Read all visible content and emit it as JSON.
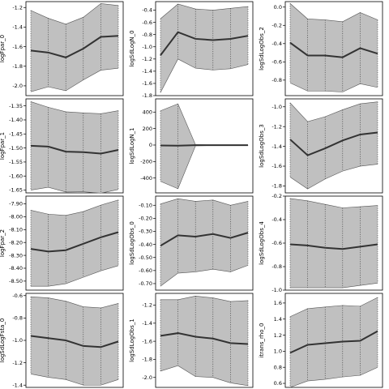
{
  "chart_data": [
    {
      "type": "line",
      "ylabel": "logFpar_0",
      "x": [
        0,
        1,
        2,
        3,
        4,
        5
      ],
      "series": [
        {
          "role": "mean",
          "values": [
            -1.64,
            -1.66,
            -1.71,
            -1.62,
            -1.5,
            -1.49
          ]
        },
        {
          "role": "upper",
          "values": [
            -1.23,
            -1.31,
            -1.37,
            -1.3,
            -1.16,
            -1.18
          ]
        },
        {
          "role": "lower",
          "values": [
            -2.06,
            -2.01,
            -2.05,
            -1.94,
            -1.84,
            -1.82
          ]
        }
      ],
      "yticks": [
        -2.0,
        -1.8,
        -1.6,
        -1.4,
        -1.2
      ],
      "ylim": [
        -2.1,
        -1.14
      ]
    },
    {
      "type": "line",
      "ylabel": "logSdLogN_0",
      "x": [
        0,
        1,
        2,
        3,
        4,
        5
      ],
      "series": [
        {
          "role": "mean",
          "values": [
            -1.14,
            -0.76,
            -0.87,
            -0.89,
            -0.87,
            -0.82
          ]
        },
        {
          "role": "upper",
          "values": [
            -0.54,
            -0.3,
            -0.38,
            -0.4,
            -0.37,
            -0.34
          ]
        },
        {
          "role": "lower",
          "values": [
            -1.75,
            -1.2,
            -1.35,
            -1.38,
            -1.36,
            -1.29
          ]
        }
      ],
      "yticks": [
        -1.8,
        -1.6,
        -1.4,
        -1.2,
        -1.0,
        -0.8,
        -0.6,
        -0.4
      ],
      "ylim": [
        -1.8,
        -0.26
      ]
    },
    {
      "type": "line",
      "ylabel": "logSdLogObs_2",
      "x": [
        0,
        1,
        2,
        3,
        4,
        5
      ],
      "series": [
        {
          "role": "mean",
          "values": [
            -0.39,
            -0.53,
            -0.53,
            -0.55,
            -0.45,
            -0.51
          ]
        },
        {
          "role": "upper",
          "values": [
            0.04,
            -0.13,
            -0.14,
            -0.16,
            -0.06,
            -0.14
          ]
        },
        {
          "role": "lower",
          "values": [
            -0.83,
            -0.92,
            -0.92,
            -0.93,
            -0.84,
            -0.88
          ]
        }
      ],
      "yticks": [
        -0.8,
        -0.6,
        -0.4,
        -0.2,
        0.0
      ],
      "ylim": [
        -0.97,
        0.06
      ]
    },
    {
      "type": "line",
      "ylabel": "logFpar_1",
      "x": [
        0,
        1,
        2,
        3,
        4,
        5
      ],
      "series": [
        {
          "role": "mean",
          "values": [
            -1.492,
            -1.495,
            -1.513,
            -1.515,
            -1.52,
            -1.507
          ]
        },
        {
          "role": "upper",
          "values": [
            -1.335,
            -1.355,
            -1.371,
            -1.375,
            -1.378,
            -1.367
          ]
        },
        {
          "role": "lower",
          "values": [
            -1.65,
            -1.64,
            -1.657,
            -1.656,
            -1.661,
            -1.648
          ]
        }
      ],
      "yticks": [
        -1.65,
        -1.6,
        -1.55,
        -1.5,
        -1.45,
        -1.4,
        -1.35
      ],
      "ylim": [
        -1.66,
        -1.325
      ]
    },
    {
      "type": "line",
      "ylabel": "logSdLogN_1",
      "x": [
        0,
        1,
        2,
        3,
        4,
        5
      ],
      "series": [
        {
          "role": "mean",
          "values": [
            -5,
            -8,
            -2,
            -2,
            -2,
            -2
          ]
        },
        {
          "role": "upper",
          "values": [
            415,
            500,
            5,
            0,
            0,
            0
          ]
        },
        {
          "role": "lower",
          "values": [
            -440,
            -530,
            -10,
            -5,
            -5,
            -4
          ]
        }
      ],
      "yticks": [
        -400,
        -200,
        0,
        200,
        400
      ],
      "ylim": [
        -580,
        560
      ]
    },
    {
      "type": "line",
      "ylabel": "logSdLogObs_3",
      "x": [
        0,
        1,
        2,
        3,
        4,
        5
      ],
      "series": [
        {
          "role": "mean",
          "values": [
            -1.33,
            -1.49,
            -1.42,
            -1.34,
            -1.28,
            -1.26
          ]
        },
        {
          "role": "upper",
          "values": [
            -0.96,
            -1.15,
            -1.1,
            -1.03,
            -0.97,
            -0.95
          ]
        },
        {
          "role": "lower",
          "values": [
            -1.71,
            -1.83,
            -1.73,
            -1.65,
            -1.6,
            -1.58
          ]
        }
      ],
      "yticks": [
        -1.8,
        -1.6,
        -1.4,
        -1.2,
        -1.0
      ],
      "ylim": [
        -1.87,
        -0.92
      ]
    },
    {
      "type": "line",
      "ylabel": "logFpar_2",
      "x": [
        0,
        1,
        2,
        3,
        4,
        5
      ],
      "series": [
        {
          "role": "mean",
          "values": [
            -8.25,
            -8.27,
            -8.26,
            -8.21,
            -8.16,
            -8.12
          ]
        },
        {
          "role": "upper",
          "values": [
            -7.95,
            -7.98,
            -7.99,
            -7.96,
            -7.91,
            -7.87
          ]
        },
        {
          "role": "lower",
          "values": [
            -8.54,
            -8.54,
            -8.52,
            -8.47,
            -8.42,
            -8.38
          ]
        }
      ],
      "yticks": [
        -8.5,
        -8.4,
        -8.3,
        -8.2,
        -8.1,
        -8.0,
        -7.9
      ],
      "ylim": [
        -8.57,
        -7.84
      ]
    },
    {
      "type": "line",
      "ylabel": "logSdLogObs_0",
      "x": [
        0,
        1,
        2,
        3,
        4,
        5
      ],
      "series": [
        {
          "role": "mean",
          "values": [
            -0.41,
            -0.33,
            -0.34,
            -0.32,
            -0.35,
            -0.31
          ]
        },
        {
          "role": "upper",
          "values": [
            -0.09,
            -0.05,
            -0.07,
            -0.06,
            -0.1,
            -0.07
          ]
        },
        {
          "role": "lower",
          "values": [
            -0.72,
            -0.62,
            -0.61,
            -0.59,
            -0.61,
            -0.56
          ]
        }
      ],
      "yticks": [
        -0.7,
        -0.6,
        -0.5,
        -0.4,
        -0.3,
        -0.2,
        -0.1
      ],
      "ylim": [
        -0.75,
        -0.03
      ]
    },
    {
      "type": "line",
      "ylabel": "logSdLogObs_4",
      "x": [
        0,
        1,
        2,
        3,
        4,
        5
      ],
      "series": [
        {
          "role": "mean",
          "values": [
            -0.61,
            -0.62,
            -0.64,
            -0.65,
            -0.63,
            -0.61
          ]
        },
        {
          "role": "upper",
          "values": [
            -0.22,
            -0.24,
            -0.27,
            -0.3,
            -0.29,
            -0.28
          ]
        },
        {
          "role": "lower",
          "values": [
            -0.98,
            -0.98,
            -0.98,
            -0.98,
            -0.96,
            -0.94
          ]
        }
      ],
      "yticks": [
        -1.0,
        -0.8,
        -0.6,
        -0.4,
        -0.2
      ],
      "ylim": [
        -1.0,
        -0.2
      ]
    },
    {
      "type": "line",
      "ylabel": "logSdLogFsta_0",
      "x": [
        0,
        1,
        2,
        3,
        4,
        5
      ],
      "series": [
        {
          "role": "mean",
          "values": [
            -0.96,
            -0.98,
            -1.0,
            -1.05,
            -1.06,
            -1.01
          ]
        },
        {
          "role": "upper",
          "values": [
            -0.61,
            -0.62,
            -0.65,
            -0.7,
            -0.71,
            -0.67
          ]
        },
        {
          "role": "lower",
          "values": [
            -1.3,
            -1.33,
            -1.35,
            -1.4,
            -1.4,
            -1.35
          ]
        }
      ],
      "yticks": [
        -1.4,
        -1.2,
        -1.0,
        -0.8,
        -0.6
      ],
      "ylim": [
        -1.42,
        -0.58
      ]
    },
    {
      "type": "line",
      "ylabel": "logSdLogObs_1",
      "x": [
        0,
        1,
        2,
        3,
        4,
        5
      ],
      "series": [
        {
          "role": "mean",
          "values": [
            -1.54,
            -1.51,
            -1.55,
            -1.57,
            -1.62,
            -1.63
          ]
        },
        {
          "role": "upper",
          "values": [
            -1.14,
            -1.14,
            -1.1,
            -1.12,
            -1.16,
            -1.15
          ]
        },
        {
          "role": "lower",
          "values": [
            -1.93,
            -1.87,
            -1.99,
            -2.0,
            -2.06,
            -2.09
          ]
        }
      ],
      "yticks": [
        -2.0,
        -1.8,
        -1.6,
        -1.4,
        -1.2
      ],
      "ylim": [
        -2.11,
        -1.07
      ]
    },
    {
      "type": "line",
      "ylabel": "itrans_rho_0",
      "x": [
        0,
        1,
        2,
        3,
        4,
        5
      ],
      "series": [
        {
          "role": "mean",
          "values": [
            0.98,
            1.08,
            1.1,
            1.12,
            1.13,
            1.25
          ]
        },
        {
          "role": "upper",
          "values": [
            1.43,
            1.53,
            1.55,
            1.57,
            1.56,
            1.67
          ]
        },
        {
          "role": "lower",
          "values": [
            0.55,
            0.63,
            0.65,
            0.68,
            0.7,
            0.8
          ]
        }
      ],
      "yticks": [
        0.6,
        0.8,
        1.0,
        1.2,
        1.4,
        1.6
      ],
      "ylim": [
        0.55,
        1.72
      ]
    }
  ]
}
